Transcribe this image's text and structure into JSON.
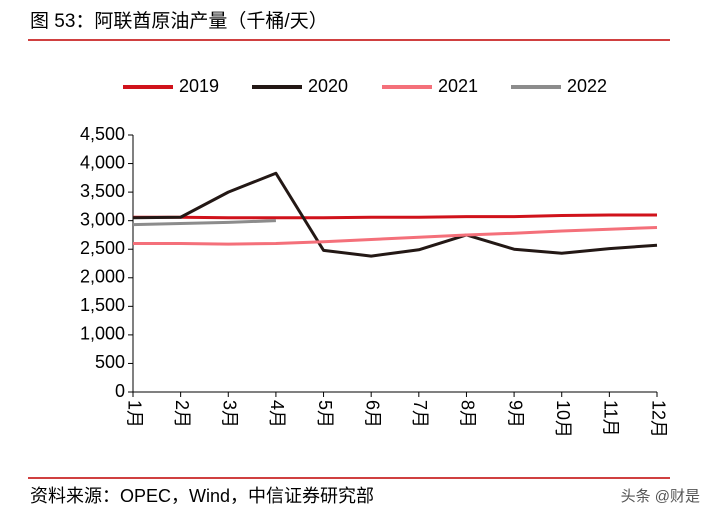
{
  "chart_data": {
    "type": "line",
    "title": "图 53：阿联酋原油产量（千桶/天）",
    "source": "资料来源：OPEC，Wind，中信证券研究部",
    "watermark": "头条 @财是",
    "categories": [
      "1月",
      "2月",
      "3月",
      "4月",
      "5月",
      "6月",
      "7月",
      "8月",
      "9月",
      "10月",
      "11月",
      "12月"
    ],
    "series": [
      {
        "name": "2019",
        "color": "#d0121b",
        "values": [
          3060,
          3060,
          3050,
          3050,
          3050,
          3060,
          3060,
          3070,
          3070,
          3090,
          3100,
          3100
        ]
      },
      {
        "name": "2020",
        "color": "#231815",
        "values": [
          3050,
          3060,
          3500,
          3830,
          2480,
          2380,
          2490,
          2750,
          2500,
          2430,
          2510,
          2570
        ]
      },
      {
        "name": "2021",
        "color": "#f4707a",
        "values": [
          2600,
          2600,
          2590,
          2600,
          2630,
          2670,
          2710,
          2750,
          2780,
          2820,
          2850,
          2880
        ]
      },
      {
        "name": "2022",
        "color": "#8c8c8c",
        "values": [
          2930,
          2950,
          2970,
          3000,
          null,
          null,
          null,
          null,
          null,
          null,
          null,
          null
        ]
      }
    ],
    "ylim": [
      0,
      4500
    ],
    "yticks": [
      0,
      500,
      {
        "value": 1000,
        "label": "1,000"
      },
      {
        "value": 1500,
        "label": "1,500"
      },
      {
        "value": 2000,
        "label": "2,000"
      },
      {
        "value": 2500,
        "label": "2,500"
      },
      {
        "value": 3000,
        "label": "3,000"
      },
      {
        "value": 3500,
        "label": "3,500"
      },
      {
        "value": 4000,
        "label": "4,000"
      },
      {
        "value": 4500,
        "label": "4,500"
      }
    ],
    "legend": "top",
    "grid": false
  }
}
